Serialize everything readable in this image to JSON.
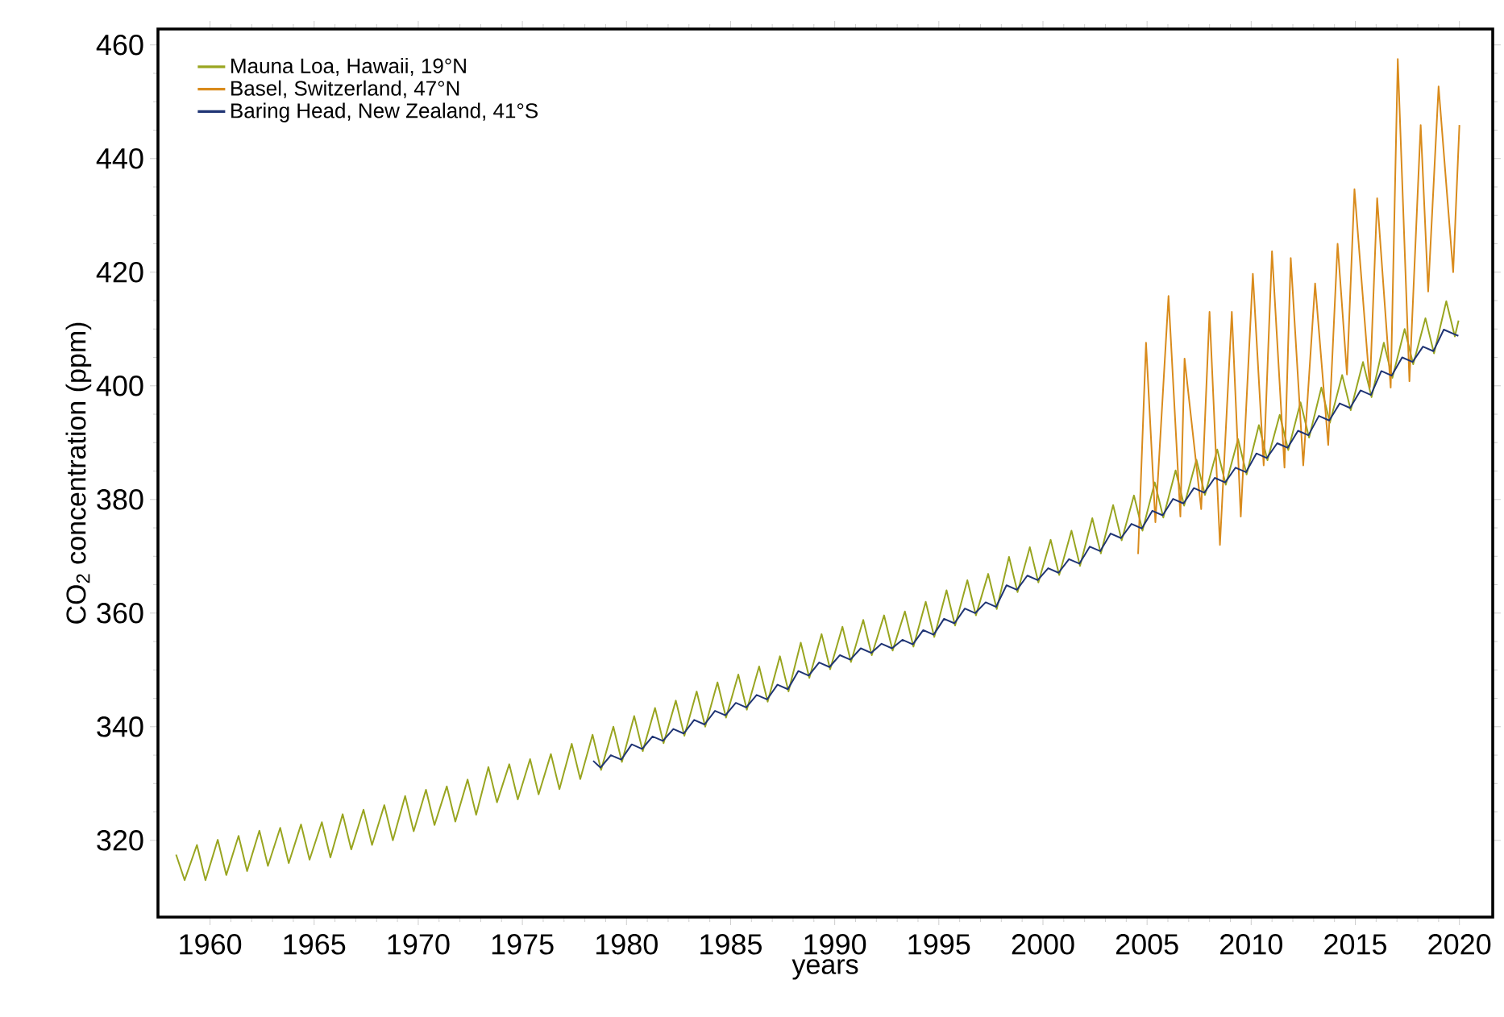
{
  "chart_data": {
    "type": "line",
    "xlabel": "years",
    "ylabel": "CO$_{2}$ concentration (ppm)",
    "xlim": [
      1957.5,
      2021.6
    ],
    "ylim": [
      306.5,
      462.8
    ],
    "xticks": [
      1960,
      1965,
      1970,
      1975,
      1980,
      1985,
      1990,
      1995,
      2000,
      2005,
      2010,
      2015,
      2020
    ],
    "yticks": [
      320,
      340,
      360,
      380,
      400,
      420,
      440,
      460
    ],
    "grid": false,
    "legend": "top left",
    "marker": "none",
    "line_style": "solid",
    "series": [
      {
        "name": "Mauna Loa, Hawaii, 19°N",
        "color": "#99a520",
        "x": [
          1958.37,
          1958.78,
          1959.37,
          1959.78,
          1960.37,
          1960.78,
          1961.37,
          1961.78,
          1962.37,
          1962.78,
          1963.37,
          1963.78,
          1964.37,
          1964.78,
          1965.37,
          1965.78,
          1966.37,
          1966.78,
          1967.37,
          1967.78,
          1968.37,
          1968.78,
          1969.37,
          1969.78,
          1970.37,
          1970.78,
          1971.37,
          1971.78,
          1972.37,
          1972.78,
          1973.37,
          1973.78,
          1974.37,
          1974.78,
          1975.37,
          1975.78,
          1976.37,
          1976.78,
          1977.37,
          1977.78,
          1978.37,
          1978.78,
          1979.37,
          1979.78,
          1980.37,
          1980.78,
          1981.37,
          1981.78,
          1982.37,
          1982.78,
          1983.37,
          1983.78,
          1984.37,
          1984.78,
          1985.37,
          1985.78,
          1986.37,
          1986.78,
          1987.37,
          1987.78,
          1988.37,
          1988.78,
          1989.37,
          1989.78,
          1990.37,
          1990.78,
          1991.37,
          1991.78,
          1992.37,
          1992.78,
          1993.37,
          1993.78,
          1994.37,
          1994.78,
          1995.37,
          1995.78,
          1996.37,
          1996.78,
          1997.37,
          1997.78,
          1998.37,
          1998.78,
          1999.37,
          1999.78,
          2000.37,
          2000.78,
          2001.37,
          2001.78,
          2002.37,
          2002.78,
          2003.37,
          2003.78,
          2004.37,
          2004.78,
          2005.37,
          2005.78,
          2006.37,
          2006.78,
          2007.37,
          2007.78,
          2008.37,
          2008.78,
          2009.37,
          2009.78,
          2010.37,
          2010.78,
          2011.37,
          2011.78,
          2012.37,
          2012.78,
          2013.37,
          2013.78,
          2014.37,
          2014.78,
          2015.37,
          2015.78,
          2016.37,
          2016.78,
          2017.37,
          2017.78,
          2018.37,
          2018.78,
          2019.37,
          2019.78,
          2019.96
        ],
        "values": [
          317.5,
          313.0,
          319.2,
          313.0,
          320.1,
          313.9,
          320.8,
          314.6,
          321.7,
          315.5,
          322.2,
          316.0,
          322.8,
          316.6,
          323.2,
          317.0,
          324.6,
          318.4,
          325.4,
          319.2,
          326.2,
          320.0,
          327.8,
          321.6,
          328.9,
          322.7,
          329.5,
          323.3,
          330.7,
          324.5,
          332.9,
          326.7,
          333.4,
          327.2,
          334.3,
          328.1,
          335.2,
          329.0,
          337.0,
          330.8,
          338.6,
          332.4,
          340.0,
          333.8,
          341.9,
          335.7,
          343.3,
          337.1,
          344.6,
          338.4,
          346.2,
          340.0,
          347.8,
          341.6,
          349.2,
          343.0,
          350.6,
          344.4,
          352.4,
          346.2,
          354.8,
          348.6,
          356.3,
          350.1,
          357.6,
          351.4,
          358.8,
          352.6,
          359.6,
          353.4,
          360.3,
          354.1,
          362.0,
          355.8,
          364.0,
          357.8,
          365.8,
          359.6,
          366.9,
          360.7,
          369.9,
          363.7,
          371.6,
          365.4,
          372.9,
          366.7,
          374.5,
          368.3,
          376.7,
          370.5,
          379.0,
          372.8,
          380.7,
          374.5,
          383.0,
          376.8,
          385.1,
          378.9,
          387.0,
          380.8,
          388.8,
          382.6,
          390.6,
          384.4,
          393.1,
          386.9,
          394.9,
          388.7,
          397.1,
          390.9,
          399.7,
          393.5,
          401.9,
          395.7,
          404.2,
          398.0,
          407.6,
          401.4,
          410.0,
          403.8,
          411.9,
          405.7,
          414.9,
          408.7,
          411.5
        ]
      },
      {
        "name": "Basel, Switzerland, 47°N",
        "color": "#d98b1c",
        "x": [
          2004.57,
          2004.95,
          2005.4,
          2006.03,
          2006.6,
          2006.8,
          2007.6,
          2008.0,
          2008.5,
          2009.07,
          2009.5,
          2010.08,
          2010.6,
          2011.0,
          2011.6,
          2011.9,
          2012.5,
          2013.07,
          2013.7,
          2014.15,
          2014.6,
          2014.96,
          2015.7,
          2016.05,
          2016.7,
          2017.04,
          2017.6,
          2018.14,
          2018.5,
          2019.0,
          2019.7,
          2020.0
        ],
        "values": [
          370.4,
          407.6,
          376.0,
          415.8,
          377.0,
          404.8,
          378.3,
          413.0,
          372.0,
          413.0,
          377.0,
          419.7,
          386.0,
          423.7,
          385.6,
          422.5,
          386.0,
          418.0,
          389.6,
          425.0,
          402.0,
          434.6,
          399.7,
          433.0,
          399.7,
          457.5,
          400.8,
          445.9,
          416.6,
          452.7,
          420.0,
          445.9
        ]
      },
      {
        "name": "Baring Head, New Zealand, 41°S",
        "color": "#1f3474",
        "x": [
          1978.4,
          1978.75,
          1979.25,
          1979.75,
          1980.25,
          1980.75,
          1981.25,
          1981.75,
          1982.25,
          1982.75,
          1983.25,
          1983.75,
          1984.25,
          1984.75,
          1985.25,
          1985.75,
          1986.25,
          1986.75,
          1987.25,
          1987.75,
          1988.25,
          1988.75,
          1989.25,
          1989.75,
          1990.25,
          1990.75,
          1991.25,
          1991.75,
          1992.25,
          1992.75,
          1993.25,
          1993.75,
          1994.25,
          1994.75,
          1995.25,
          1995.75,
          1996.25,
          1996.75,
          1997.25,
          1997.75,
          1998.25,
          1998.75,
          1999.25,
          1999.75,
          2000.25,
          2000.75,
          2001.25,
          2001.75,
          2002.25,
          2002.75,
          2003.25,
          2003.75,
          2004.25,
          2004.75,
          2005.25,
          2005.75,
          2006.25,
          2006.75,
          2007.25,
          2007.75,
          2008.25,
          2008.75,
          2009.25,
          2009.75,
          2010.25,
          2010.75,
          2011.25,
          2011.75,
          2012.25,
          2012.75,
          2013.25,
          2013.75,
          2014.25,
          2014.75,
          2015.25,
          2015.75,
          2016.25,
          2016.75,
          2017.25,
          2017.75,
          2018.25,
          2018.75,
          2019.25,
          2019.75,
          2019.95
        ],
        "values": [
          334.0,
          332.8,
          335.0,
          334.2,
          336.9,
          336.1,
          338.3,
          337.5,
          339.6,
          338.8,
          341.2,
          340.4,
          342.8,
          342.0,
          344.2,
          343.4,
          345.6,
          344.8,
          347.4,
          346.6,
          349.8,
          349.0,
          351.3,
          350.5,
          352.6,
          351.8,
          353.8,
          353.0,
          354.6,
          353.8,
          355.3,
          354.5,
          357.0,
          356.2,
          359.0,
          358.2,
          360.8,
          360.0,
          361.9,
          361.1,
          364.9,
          364.1,
          366.6,
          365.8,
          367.9,
          367.1,
          369.5,
          368.7,
          371.7,
          370.9,
          374.0,
          373.2,
          375.7,
          374.9,
          378.0,
          377.2,
          380.1,
          379.3,
          382.0,
          381.2,
          383.8,
          383.0,
          385.6,
          384.8,
          388.1,
          387.3,
          389.9,
          389.1,
          392.1,
          391.3,
          394.7,
          393.9,
          396.9,
          396.1,
          399.2,
          398.4,
          402.6,
          401.8,
          405.0,
          404.2,
          406.9,
          406.1,
          409.9,
          409.1,
          408.8
        ]
      }
    ]
  }
}
